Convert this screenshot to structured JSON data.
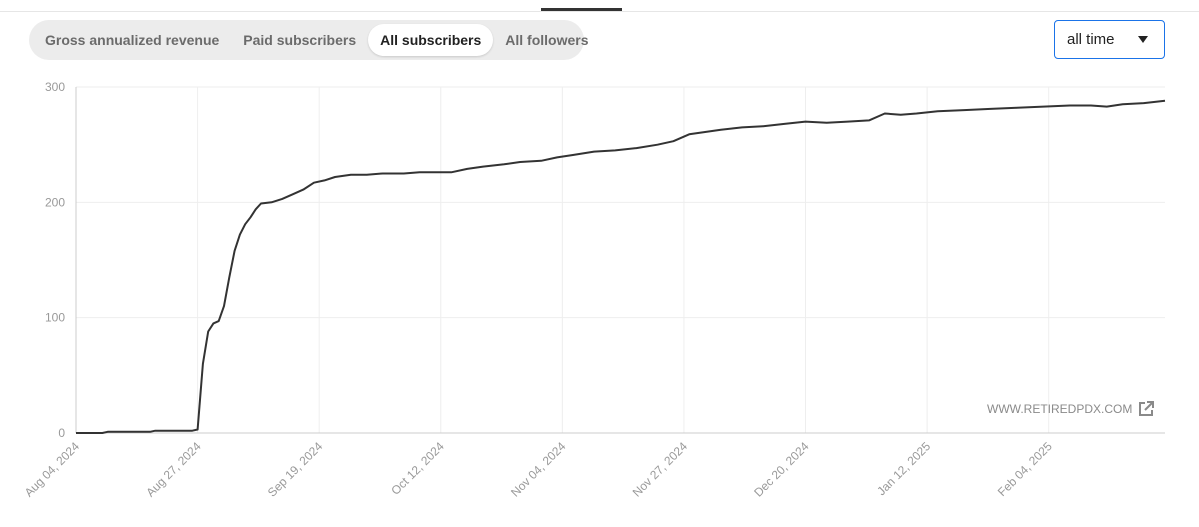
{
  "tabs": [
    {
      "label": "Gross annualized revenue",
      "active": false
    },
    {
      "label": "Paid subscribers",
      "active": false
    },
    {
      "label": "All subscribers",
      "active": true
    },
    {
      "label": "All followers",
      "active": false
    }
  ],
  "range_select": {
    "value": "all time",
    "icon": "caret-down-icon"
  },
  "watermark": {
    "text": "WWW.RETIREDPDX.COM",
    "icon": "external-link-icon"
  },
  "colors": {
    "line": "#333333",
    "grid": "#eeeeee",
    "axis": "#cccccc",
    "tick_text": "#999999",
    "focus": "#1a73e8"
  },
  "chart_data": {
    "type": "line",
    "title": "",
    "xlabel": "",
    "ylabel": "",
    "ylim": [
      0,
      300
    ],
    "yticks": [
      0,
      100,
      200,
      300
    ],
    "xlim": [
      "2024-08-04",
      "2025-02-26"
    ],
    "xticks": [
      "Aug 04, 2024",
      "Aug 27, 2024",
      "Sep 19, 2024",
      "Oct 12, 2024",
      "Nov 04, 2024",
      "Nov 27, 2024",
      "Dec 20, 2024",
      "Jan 12, 2025",
      "Feb 04, 2025"
    ],
    "grid": true,
    "series": [
      {
        "points": [
          [
            "2024-08-04",
            0
          ],
          [
            "2024-08-09",
            0
          ],
          [
            "2024-08-10",
            1
          ],
          [
            "2024-08-18",
            1
          ],
          [
            "2024-08-19",
            2
          ],
          [
            "2024-08-26",
            2
          ],
          [
            "2024-08-27",
            3
          ],
          [
            "2024-08-28",
            60
          ],
          [
            "2024-08-29",
            88
          ],
          [
            "2024-08-30",
            95
          ],
          [
            "2024-08-31",
            97
          ],
          [
            "2024-09-01",
            110
          ],
          [
            "2024-09-02",
            135
          ],
          [
            "2024-09-03",
            158
          ],
          [
            "2024-09-04",
            172
          ],
          [
            "2024-09-05",
            181
          ],
          [
            "2024-09-06",
            187
          ],
          [
            "2024-09-07",
            194
          ],
          [
            "2024-09-08",
            199
          ],
          [
            "2024-09-10",
            200
          ],
          [
            "2024-09-12",
            203
          ],
          [
            "2024-09-14",
            207
          ],
          [
            "2024-09-16",
            211
          ],
          [
            "2024-09-18",
            217
          ],
          [
            "2024-09-20",
            219
          ],
          [
            "2024-09-22",
            222
          ],
          [
            "2024-09-25",
            224
          ],
          [
            "2024-09-28",
            224
          ],
          [
            "2024-10-01",
            225
          ],
          [
            "2024-10-05",
            225
          ],
          [
            "2024-10-08",
            226
          ],
          [
            "2024-10-11",
            226
          ],
          [
            "2024-10-14",
            226
          ],
          [
            "2024-10-17",
            229
          ],
          [
            "2024-10-20",
            231
          ],
          [
            "2024-10-24",
            233
          ],
          [
            "2024-10-27",
            235
          ],
          [
            "2024-10-31",
            236
          ],
          [
            "2024-11-03",
            239
          ],
          [
            "2024-11-06",
            241
          ],
          [
            "2024-11-10",
            244
          ],
          [
            "2024-11-14",
            245
          ],
          [
            "2024-11-18",
            247
          ],
          [
            "2024-11-22",
            250
          ],
          [
            "2024-11-25",
            253
          ],
          [
            "2024-11-28",
            259
          ],
          [
            "2024-12-01",
            261
          ],
          [
            "2024-12-04",
            263
          ],
          [
            "2024-12-08",
            265
          ],
          [
            "2024-12-12",
            266
          ],
          [
            "2024-12-16",
            268
          ],
          [
            "2024-12-20",
            270
          ],
          [
            "2024-12-24",
            269
          ],
          [
            "2024-12-28",
            270
          ],
          [
            "2025-01-01",
            271
          ],
          [
            "2025-01-04",
            277
          ],
          [
            "2025-01-07",
            276
          ],
          [
            "2025-01-10",
            277
          ],
          [
            "2025-01-14",
            279
          ],
          [
            "2025-01-19",
            280
          ],
          [
            "2025-01-24",
            281
          ],
          [
            "2025-01-29",
            282
          ],
          [
            "2025-02-03",
            283
          ],
          [
            "2025-02-08",
            284
          ],
          [
            "2025-02-12",
            284
          ],
          [
            "2025-02-15",
            283
          ],
          [
            "2025-02-18",
            285
          ],
          [
            "2025-02-22",
            286
          ],
          [
            "2025-02-26",
            288
          ]
        ]
      }
    ]
  }
}
